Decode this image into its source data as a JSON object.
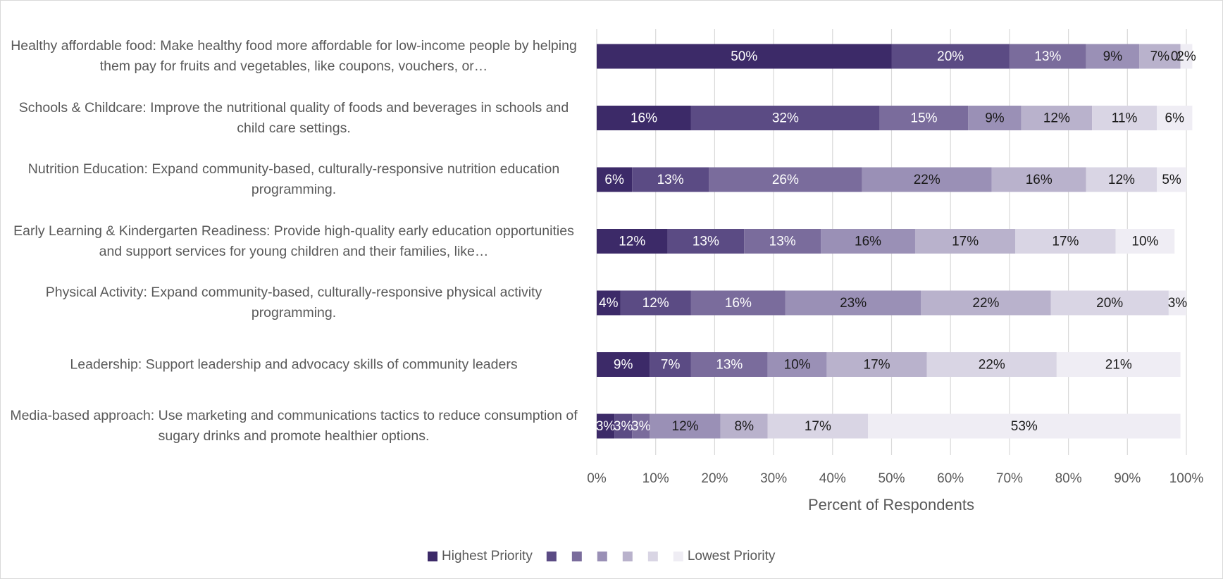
{
  "chart_data": {
    "type": "stacked-barh",
    "x_label": "Percent of Respondents",
    "categories": [
      "Healthy affordable food: Make healthy food more affordable for low-income people by helping them pay for fruits and vegetables, like coupons, vouchers, or…",
      "Schools & Childcare: Improve the nutritional quality of foods and beverages in schools and child care settings.",
      "Nutrition Education: Expand community-based, culturally-responsive nutrition education programming.",
      "Early Learning & Kindergarten Readiness: Provide high-quality early education opportunities and support services for young children and their families, like…",
      "Physical Activity: Expand community-based, culturally-responsive physical activity programming.",
      "Leadership: Support leadership and advocacy skills of community leaders",
      "Media-based approach: Use marketing and communications tactics to reduce consumption of sugary drinks and promote healthier options."
    ],
    "series": [
      {
        "name": "Highest Priority",
        "color": "#3c2a68",
        "values": [
          50,
          16,
          6,
          12,
          4,
          9,
          3
        ],
        "value_labels": [
          "50%",
          "16%",
          "6%",
          "12%",
          "4%",
          "9%",
          "3%"
        ]
      },
      {
        "name": null,
        "color": "#5b4b84",
        "values": [
          20,
          32,
          13,
          13,
          12,
          7,
          3
        ],
        "value_labels": [
          "20%",
          "32%",
          "13%",
          "13%",
          "12%",
          "7%",
          "3%"
        ]
      },
      {
        "name": null,
        "color": "#7a6c9c",
        "values": [
          13,
          15,
          26,
          13,
          16,
          13,
          3
        ],
        "value_labels": [
          "13%",
          "15%",
          "26%",
          "13%",
          "16%",
          "13%",
          "3%"
        ]
      },
      {
        "name": null,
        "color": "#9a90b6",
        "values": [
          9,
          9,
          22,
          16,
          23,
          10,
          12
        ],
        "value_labels": [
          "9%",
          "9%",
          "22%",
          "16%",
          "23%",
          "10%",
          "12%"
        ]
      },
      {
        "name": null,
        "color": "#b9b2cc",
        "values": [
          7,
          12,
          16,
          17,
          22,
          17,
          8
        ],
        "value_labels": [
          "7%",
          "12%",
          "16%",
          "17%",
          "22%",
          "17%",
          "8%"
        ]
      },
      {
        "name": null,
        "color": "#d9d5e4",
        "values": [
          0,
          11,
          12,
          17,
          20,
          22,
          17
        ],
        "value_labels": [
          "0%",
          "11%",
          "12%",
          "17%",
          "20%",
          "22%",
          "17%"
        ]
      },
      {
        "name": "Lowest Priority",
        "color": "#efedf4",
        "values": [
          2,
          6,
          5,
          10,
          3,
          21,
          53
        ],
        "value_labels": [
          "2%",
          "6%",
          "5%",
          "10%",
          "3%",
          "21%",
          "53%"
        ]
      }
    ],
    "xlim": [
      0,
      100
    ],
    "xticks": [
      {
        "value": 0,
        "label": "0%"
      },
      {
        "value": 10,
        "label": "10%"
      },
      {
        "value": 20,
        "label": "20%"
      },
      {
        "value": 30,
        "label": "30%"
      },
      {
        "value": 40,
        "label": "40%"
      },
      {
        "value": 50,
        "label": "50%"
      },
      {
        "value": 60,
        "label": "60%"
      },
      {
        "value": 70,
        "label": "70%"
      },
      {
        "value": 80,
        "label": "80%"
      },
      {
        "value": 90,
        "label": "90%"
      },
      {
        "value": 100,
        "label": "100%"
      }
    ],
    "grid": true,
    "legend": "bottom"
  }
}
